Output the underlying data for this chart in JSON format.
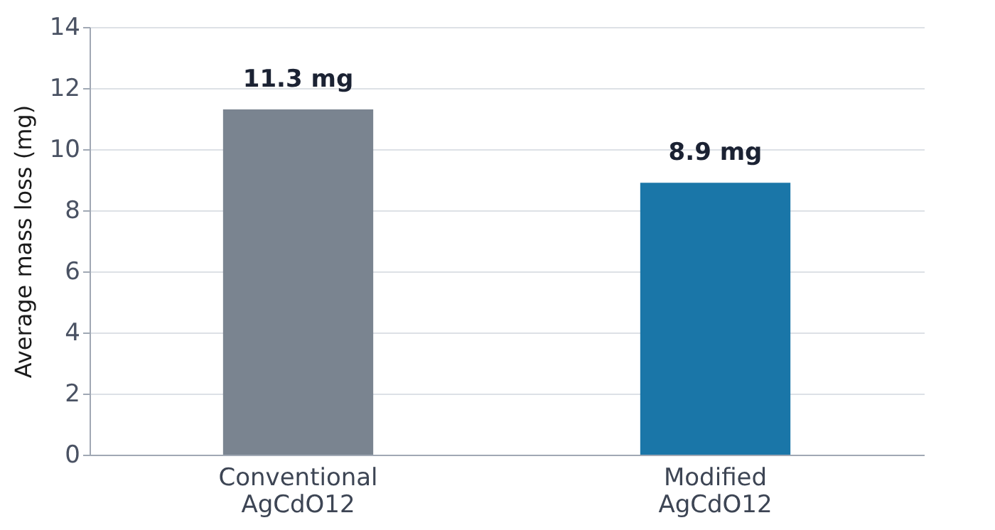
{
  "chart_data": {
    "type": "bar",
    "ylabel": "Average mass loss (mg)",
    "categories": [
      "Conventional AgCdO12",
      "Modified AgCdO12"
    ],
    "values": [
      11.3,
      8.9
    ],
    "colors": [
      "#7a8490",
      "#1a76a8"
    ],
    "value_labels": [
      "11.3 mg",
      "8.9 mg"
    ],
    "ylim": [
      0,
      14
    ],
    "yticks": [
      0,
      2,
      4,
      6,
      8,
      10,
      12,
      14
    ],
    "grid": "y"
  }
}
